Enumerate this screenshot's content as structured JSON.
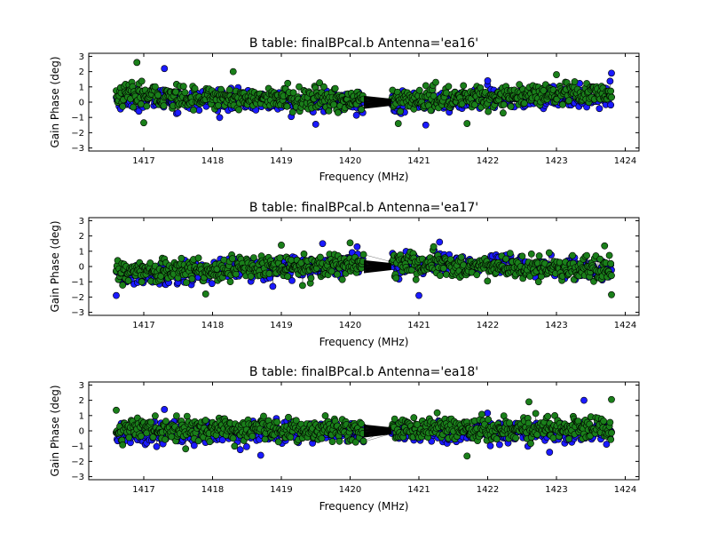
{
  "figure": {
    "background": "#ffffff",
    "series_colors": [
      "#1a1aff",
      "#1a7f1a"
    ],
    "marker_edge": "#000000"
  },
  "chart_data": [
    {
      "type": "scatter",
      "title": "B table: finalBPcal.b      Antenna='ea16'",
      "xlabel": "Frequency (MHz)",
      "ylabel": "Gain Phase (deg)",
      "xlim": [
        1416.2,
        1424.2
      ],
      "ylim": [
        -3.2,
        3.2
      ],
      "xticks": [
        1417,
        1418,
        1419,
        1420,
        1421,
        1422,
        1423,
        1424
      ],
      "yticks": [
        -3,
        -2,
        -1,
        0,
        1,
        2,
        3
      ],
      "grid": false,
      "x_range": [
        1416.6,
        1423.8
      ],
      "gap": [
        1420.2,
        1420.6
      ],
      "series": [
        {
          "color": "#1a1aff",
          "center_left": 0.25,
          "center_mid": -0.05,
          "center_right": 0.4,
          "spread": 0.65
        },
        {
          "color": "#1a7f1a",
          "center_left": 0.45,
          "center_mid": 0.1,
          "center_right": 0.55,
          "spread": 0.75
        }
      ],
      "outliers": [
        {
          "x": 1416.9,
          "y": 2.6
        },
        {
          "x": 1417.3,
          "y": 2.2
        },
        {
          "x": 1418.3,
          "y": 2.0
        },
        {
          "x": 1422.0,
          "y": 1.4
        },
        {
          "x": 1423.0,
          "y": 1.8
        },
        {
          "x": 1423.8,
          "y": 1.9
        },
        {
          "x": 1417.0,
          "y": -1.35
        },
        {
          "x": 1419.5,
          "y": -1.45
        },
        {
          "x": 1420.7,
          "y": -1.4
        },
        {
          "x": 1421.1,
          "y": -1.5
        },
        {
          "x": 1421.7,
          "y": -1.4
        }
      ]
    },
    {
      "type": "scatter",
      "title": "B table: finalBPcal.b      Antenna='ea17'",
      "xlabel": "Frequency (MHz)",
      "ylabel": "Gain Phase (deg)",
      "xlim": [
        1416.2,
        1424.2
      ],
      "ylim": [
        -3.2,
        3.2
      ],
      "xticks": [
        1417,
        1418,
        1419,
        1420,
        1421,
        1422,
        1423,
        1424
      ],
      "yticks": [
        -3,
        -2,
        -1,
        0,
        1,
        2,
        3
      ],
      "grid": false,
      "x_range": [
        1416.6,
        1423.8
      ],
      "gap": [
        1420.2,
        1420.6
      ],
      "series": [
        {
          "color": "#1a1aff",
          "center_left": -0.6,
          "center_mid": 0.3,
          "center_right": -0.2,
          "spread": 0.7
        },
        {
          "color": "#1a7f1a",
          "center_left": -0.4,
          "center_mid": 0.2,
          "center_right": -0.3,
          "spread": 0.75
        }
      ],
      "outliers": [
        {
          "x": 1419.0,
          "y": 1.4
        },
        {
          "x": 1419.6,
          "y": 1.5
        },
        {
          "x": 1420.0,
          "y": 1.55
        },
        {
          "x": 1421.3,
          "y": 1.6
        },
        {
          "x": 1423.7,
          "y": 1.35
        },
        {
          "x": 1416.6,
          "y": -1.9
        },
        {
          "x": 1417.9,
          "y": -1.8
        },
        {
          "x": 1421.0,
          "y": -1.9
        },
        {
          "x": 1423.8,
          "y": -1.85
        }
      ]
    },
    {
      "type": "scatter",
      "title": "B table: finalBPcal.b      Antenna='ea18'",
      "xlabel": "Frequency (MHz)",
      "ylabel": "Gain Phase (deg)",
      "xlim": [
        1416.2,
        1424.2
      ],
      "ylim": [
        -3.2,
        3.2
      ],
      "xticks": [
        1417,
        1418,
        1419,
        1420,
        1421,
        1422,
        1423,
        1424
      ],
      "yticks": [
        -3,
        -2,
        -1,
        0,
        1,
        2,
        3
      ],
      "grid": false,
      "x_range": [
        1416.6,
        1423.8
      ],
      "gap": [
        1420.2,
        1420.6
      ],
      "series": [
        {
          "color": "#1a1aff",
          "center_left": -0.2,
          "center_mid": 0.0,
          "center_right": -0.1,
          "spread": 0.7
        },
        {
          "color": "#1a7f1a",
          "center_left": 0.1,
          "center_mid": 0.1,
          "center_right": 0.2,
          "spread": 0.75
        }
      ],
      "outliers": [
        {
          "x": 1416.6,
          "y": 1.35
        },
        {
          "x": 1417.3,
          "y": 1.4
        },
        {
          "x": 1422.6,
          "y": 1.9
        },
        {
          "x": 1423.4,
          "y": 2.0
        },
        {
          "x": 1423.8,
          "y": 2.05
        },
        {
          "x": 1418.7,
          "y": -1.6
        },
        {
          "x": 1421.7,
          "y": -1.65
        },
        {
          "x": 1422.9,
          "y": -1.4
        }
      ]
    }
  ]
}
